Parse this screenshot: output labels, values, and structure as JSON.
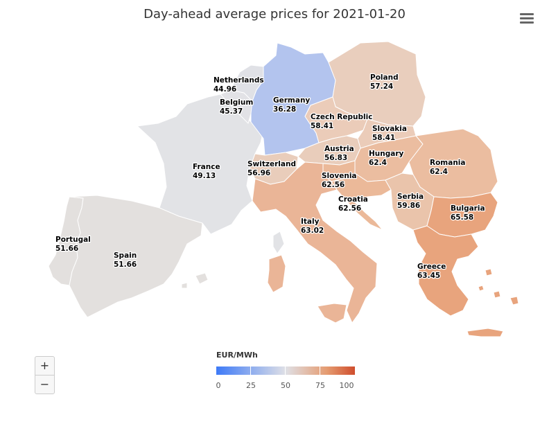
{
  "title": "Day-ahead average prices for 2021-01-20",
  "menu_icon": "hamburger-menu-icon",
  "legend": {
    "title": "EUR/MWh",
    "ticks": [
      "0",
      "25",
      "50",
      "75",
      "100"
    ],
    "min": 0,
    "max": 100,
    "colors": [
      "#3e7af7",
      "#dfe0e6",
      "#e59b70",
      "#cf4e2d"
    ]
  },
  "zoom": {
    "in_label": "+",
    "out_label": "−"
  },
  "countries": [
    {
      "id": "netherlands",
      "name": "Netherlands",
      "price": "44.96"
    },
    {
      "id": "belgium",
      "name": "Belgium",
      "price": "45.37"
    },
    {
      "id": "germany",
      "name": "Germany",
      "price": "36.28"
    },
    {
      "id": "poland",
      "name": "Poland",
      "price": "57.24"
    },
    {
      "id": "czech-republic",
      "name": "Czech Republic",
      "price": "58.41"
    },
    {
      "id": "slovakia",
      "name": "Slovakia",
      "price": "58.41"
    },
    {
      "id": "france",
      "name": "France",
      "price": "49.13"
    },
    {
      "id": "switzerland",
      "name": "Switzerland",
      "price": "56.96"
    },
    {
      "id": "austria",
      "name": "Austria",
      "price": "56.83"
    },
    {
      "id": "hungary",
      "name": "Hungary",
      "price": "62.4"
    },
    {
      "id": "romania",
      "name": "Romania",
      "price": "62.4"
    },
    {
      "id": "slovenia",
      "name": "Slovenia",
      "price": "62.56"
    },
    {
      "id": "croatia",
      "name": "Croatia",
      "price": "62.56"
    },
    {
      "id": "serbia",
      "name": "Serbia",
      "price": "59.86"
    },
    {
      "id": "bulgaria",
      "name": "Bulgaria",
      "price": "65.58"
    },
    {
      "id": "italy",
      "name": "Italy",
      "price": "63.02"
    },
    {
      "id": "portugal",
      "name": "Portugal",
      "price": "51.66"
    },
    {
      "id": "spain",
      "name": "Spain",
      "price": "51.66"
    },
    {
      "id": "greece",
      "name": "Greece",
      "price": "63.45"
    }
  ]
}
